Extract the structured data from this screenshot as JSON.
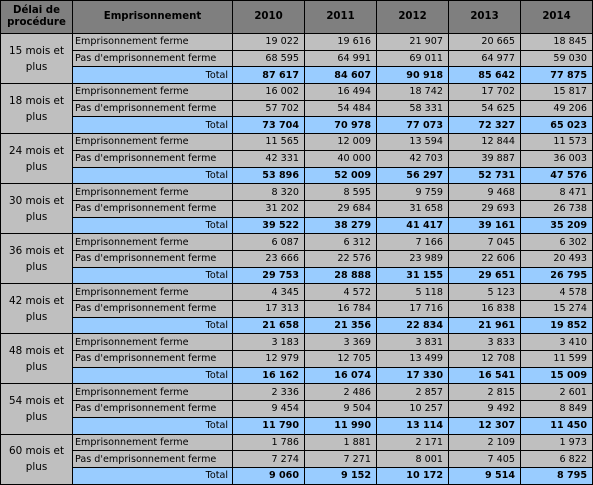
{
  "header": {
    "delai": "Délai de procédure",
    "emprisonnement": "Emprisonnement",
    "years": [
      "2010",
      "2011",
      "2012",
      "2013",
      "2014"
    ]
  },
  "groups": [
    {
      "delai": "15 mois et plus",
      "ferme": {
        "label": "Emprisonnement ferme",
        "values": [
          "19 022",
          "19 616",
          "21 907",
          "20 665",
          "18 845"
        ]
      },
      "pas": {
        "label": "Pas d'emprisonnement ferme",
        "values": [
          "68 595",
          "64 991",
          "69 011",
          "64 977",
          "59 030"
        ]
      },
      "total": {
        "label": "Total",
        "values": [
          "87 617",
          "84 607",
          "90 918",
          "85 642",
          "77 875"
        ]
      }
    },
    {
      "delai": "18 mois et plus",
      "ferme": {
        "label": "Emprisonnement ferme",
        "values": [
          "16 002",
          "16 494",
          "18 742",
          "17 702",
          "15 817"
        ]
      },
      "pas": {
        "label": "Pas d'emprisonnement ferme",
        "values": [
          "57 702",
          "54 484",
          "58 331",
          "54 625",
          "49 206"
        ]
      },
      "total": {
        "label": "Total",
        "values": [
          "73 704",
          "70 978",
          "77 073",
          "72 327",
          "65 023"
        ]
      }
    },
    {
      "delai": "24 mois et plus",
      "ferme": {
        "label": "Emprisonnement ferme",
        "values": [
          "11 565",
          "12 009",
          "13 594",
          "12 844",
          "11 573"
        ]
      },
      "pas": {
        "label": "Pas d'emprisonnement ferme",
        "values": [
          "42 331",
          "40 000",
          "42 703",
          "39 887",
          "36 003"
        ]
      },
      "total": {
        "label": "Total",
        "values": [
          "53 896",
          "52 009",
          "56 297",
          "52 731",
          "47 576"
        ]
      }
    },
    {
      "delai": "30 mois et plus",
      "ferme": {
        "label": "Emprisonnement ferme",
        "values": [
          "8 320",
          "8 595",
          "9 759",
          "9 468",
          "8 471"
        ]
      },
      "pas": {
        "label": "Pas d'emprisonnement ferme",
        "values": [
          "31 202",
          "29 684",
          "31 658",
          "29 693",
          "26 738"
        ]
      },
      "total": {
        "label": "Total",
        "values": [
          "39 522",
          "38 279",
          "41 417",
          "39 161",
          "35 209"
        ]
      }
    },
    {
      "delai": "36 mois et plus",
      "ferme": {
        "label": "Emprisonnement ferme",
        "values": [
          "6 087",
          "6 312",
          "7 166",
          "7 045",
          "6 302"
        ]
      },
      "pas": {
        "label": "Pas d'emprisonnement ferme",
        "values": [
          "23 666",
          "22 576",
          "23 989",
          "22 606",
          "20 493"
        ]
      },
      "total": {
        "label": "Total",
        "values": [
          "29 753",
          "28 888",
          "31 155",
          "29 651",
          "26 795"
        ]
      }
    },
    {
      "delai": "42 mois et plus",
      "ferme": {
        "label": "Emprisonnement ferme",
        "values": [
          "4 345",
          "4 572",
          "5 118",
          "5 123",
          "4 578"
        ]
      },
      "pas": {
        "label": "Pas d'emprisonnement ferme",
        "values": [
          "17 313",
          "16 784",
          "17 716",
          "16 838",
          "15 274"
        ]
      },
      "total": {
        "label": "Total",
        "values": [
          "21 658",
          "21 356",
          "22 834",
          "21 961",
          "19 852"
        ]
      }
    },
    {
      "delai": "48 mois et plus",
      "ferme": {
        "label": "Emprisonnement ferme",
        "values": [
          "3 183",
          "3 369",
          "3 831",
          "3 833",
          "3 410"
        ]
      },
      "pas": {
        "label": "Pas d'emprisonnement ferme",
        "values": [
          "12 979",
          "12 705",
          "13 499",
          "12 708",
          "11 599"
        ]
      },
      "total": {
        "label": "Total",
        "values": [
          "16 162",
          "16 074",
          "17 330",
          "16 541",
          "15 009"
        ]
      }
    },
    {
      "delai": "54 mois et plus",
      "ferme": {
        "label": "Emprisonnement ferme",
        "values": [
          "2 336",
          "2 486",
          "2 857",
          "2 815",
          "2 601"
        ]
      },
      "pas": {
        "label": "Pas d'emprisonnement ferme",
        "values": [
          "9 454",
          "9 504",
          "10 257",
          "9 492",
          "8 849"
        ]
      },
      "total": {
        "label": "Total",
        "values": [
          "11 790",
          "11 990",
          "13 114",
          "12 307",
          "11 450"
        ]
      }
    },
    {
      "delai": "60 mois et plus",
      "ferme": {
        "label": "Emprisonnement ferme",
        "values": [
          "1 786",
          "1 881",
          "2 171",
          "2 109",
          "1 973"
        ]
      },
      "pas": {
        "label": "Pas d'emprisonnement ferme",
        "values": [
          "7 274",
          "7 271",
          "8 001",
          "7 405",
          "6 822"
        ]
      },
      "total": {
        "label": "Total",
        "values": [
          "9 060",
          "9 152",
          "10 172",
          "9 514",
          "8 795"
        ]
      }
    }
  ]
}
